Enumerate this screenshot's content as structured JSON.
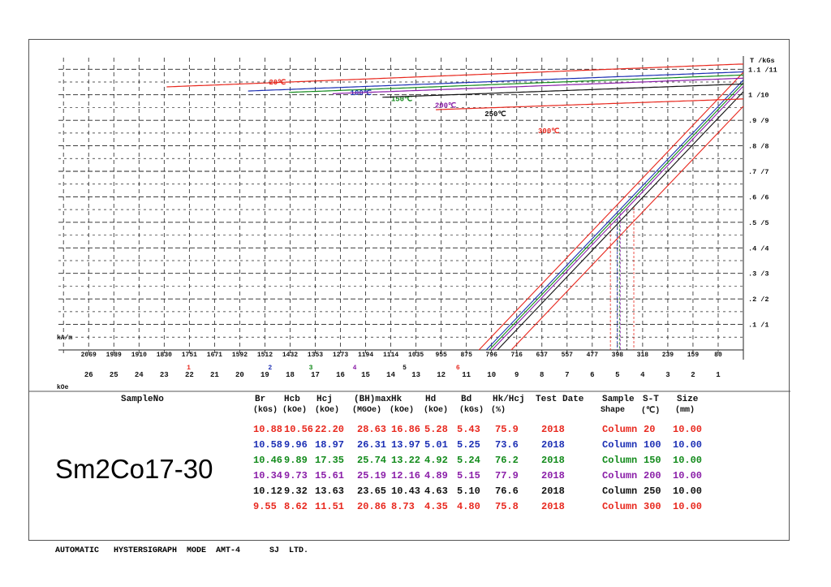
{
  "chart_data": {
    "type": "line",
    "title": "",
    "y_unit_label": "T /kGs",
    "x_top_unit": "kA/m",
    "x_bottom_unit": "kOe",
    "x_top_ticks": [
      "2069",
      "1989",
      "1910",
      "1830",
      "1751",
      "1671",
      "1592",
      "1512",
      "1432",
      "1353",
      "1273",
      "1194",
      "1114",
      "1035",
      "955",
      "875",
      "796",
      "716",
      "637",
      "557",
      "477",
      "398",
      "318",
      "239",
      "159",
      "80"
    ],
    "x_bottom_ticks": [
      "26",
      "25",
      "24",
      "23",
      "22",
      "21",
      "20",
      "19",
      "18",
      "17",
      "16",
      "15",
      "14",
      "13",
      "12",
      "11",
      "10",
      "9",
      "8",
      "7",
      "6",
      "5",
      "4",
      "3",
      "2",
      "1"
    ],
    "y_ticks": [
      ".1 /1",
      ".2 /2",
      ".3 /3",
      ".4 /4",
      ".5 /5",
      ".6 /6",
      ".7 /7",
      ".8 /8",
      ".9 /9",
      "1 /10",
      "1.1 /11"
    ],
    "x_range_kOe": [
      0,
      27.2
    ],
    "y_range_T": [
      0,
      1.12
    ],
    "curve_markers": [
      "1",
      "2",
      "3",
      "4",
      "5",
      "6"
    ],
    "series": [
      {
        "name": "20℃",
        "color": "#e8281e",
        "Br_kGs": 10.88,
        "Hcj_kOe": 22.2,
        "marker": "1"
      },
      {
        "name": "100℃",
        "color": "#1c2fb4",
        "Br_kGs": 10.58,
        "Hcj_kOe": 18.97,
        "marker": "2"
      },
      {
        "name": "150℃",
        "color": "#118a1a",
        "Br_kGs": 10.46,
        "Hcj_kOe": 17.35,
        "marker": "3"
      },
      {
        "name": "200℃",
        "color": "#8a1ea8",
        "Br_kGs": 10.34,
        "Hcj_kOe": 15.61,
        "marker": "4"
      },
      {
        "name": "250℃",
        "color": "#111111",
        "Br_kGs": 10.12,
        "Hcj_kOe": 13.63,
        "marker": "5"
      },
      {
        "name": "300℃",
        "color": "#e8281e",
        "Br_kGs": 9.55,
        "Hcj_kOe": 11.51,
        "marker": "6"
      }
    ]
  },
  "table": {
    "sample_header": "SampleNo",
    "sample_value": "Sm2Co17-30",
    "columns": [
      {
        "h1": "Br",
        "h2": "(kGs)"
      },
      {
        "h1": "Hcb",
        "h2": "(kOe)"
      },
      {
        "h1": "Hcj",
        "h2": "(kOe)"
      },
      {
        "h1": "(BH)max",
        "h2": "(MGOe)"
      },
      {
        "h1": "Hk",
        "h2": "(kOe)"
      },
      {
        "h1": "Hd",
        "h2": "(kOe)"
      },
      {
        "h1": "Bd",
        "h2": "(kGs)"
      },
      {
        "h1": "Hk/Hcj",
        "h2": "(%)"
      },
      {
        "h1": "Test Date",
        "h2": ""
      },
      {
        "h1": "Sample",
        "h2": "Shape"
      },
      {
        "h1": "S-T",
        "h2": "(℃)"
      },
      {
        "h1": "Size",
        "h2": "(mm)"
      }
    ],
    "rows": [
      {
        "color": "#e8281e",
        "values": [
          "10.88",
          "10.56",
          "22.20",
          "28.63",
          "16.86",
          "5.28",
          "5.43",
          "75.9",
          "2018",
          "Column",
          "20",
          "10.00"
        ]
      },
      {
        "color": "#1c2fb4",
        "values": [
          "10.58",
          "9.96",
          "18.97",
          "26.31",
          "13.97",
          "5.01",
          "5.25",
          "73.6",
          "2018",
          "Column",
          "100",
          "10.00"
        ]
      },
      {
        "color": "#118a1a",
        "values": [
          "10.46",
          "9.89",
          "17.35",
          "25.74",
          "13.22",
          "4.92",
          "5.24",
          "76.2",
          "2018",
          "Column",
          "150",
          "10.00"
        ]
      },
      {
        "color": "#8a1ea8",
        "values": [
          "10.34",
          "9.73",
          "15.61",
          "25.19",
          "12.16",
          "4.89",
          "5.15",
          "77.9",
          "2018",
          "Column",
          "200",
          "10.00"
        ]
      },
      {
        "color": "#111111",
        "values": [
          "10.12",
          "9.32",
          "13.63",
          "23.65",
          "10.43",
          "4.63",
          "5.10",
          "76.6",
          "2018",
          "Column",
          "250",
          "10.00"
        ]
      },
      {
        "color": "#e8281e",
        "values": [
          "9.55",
          "8.62",
          "11.51",
          "20.86",
          "8.73",
          "4.35",
          "4.80",
          "75.8",
          "2018",
          "Column",
          "300",
          "10.00"
        ]
      }
    ]
  },
  "footer": "AUTOMATIC   HYSTERSIGRAPH  MODE  AMT-4      SJ  LTD."
}
